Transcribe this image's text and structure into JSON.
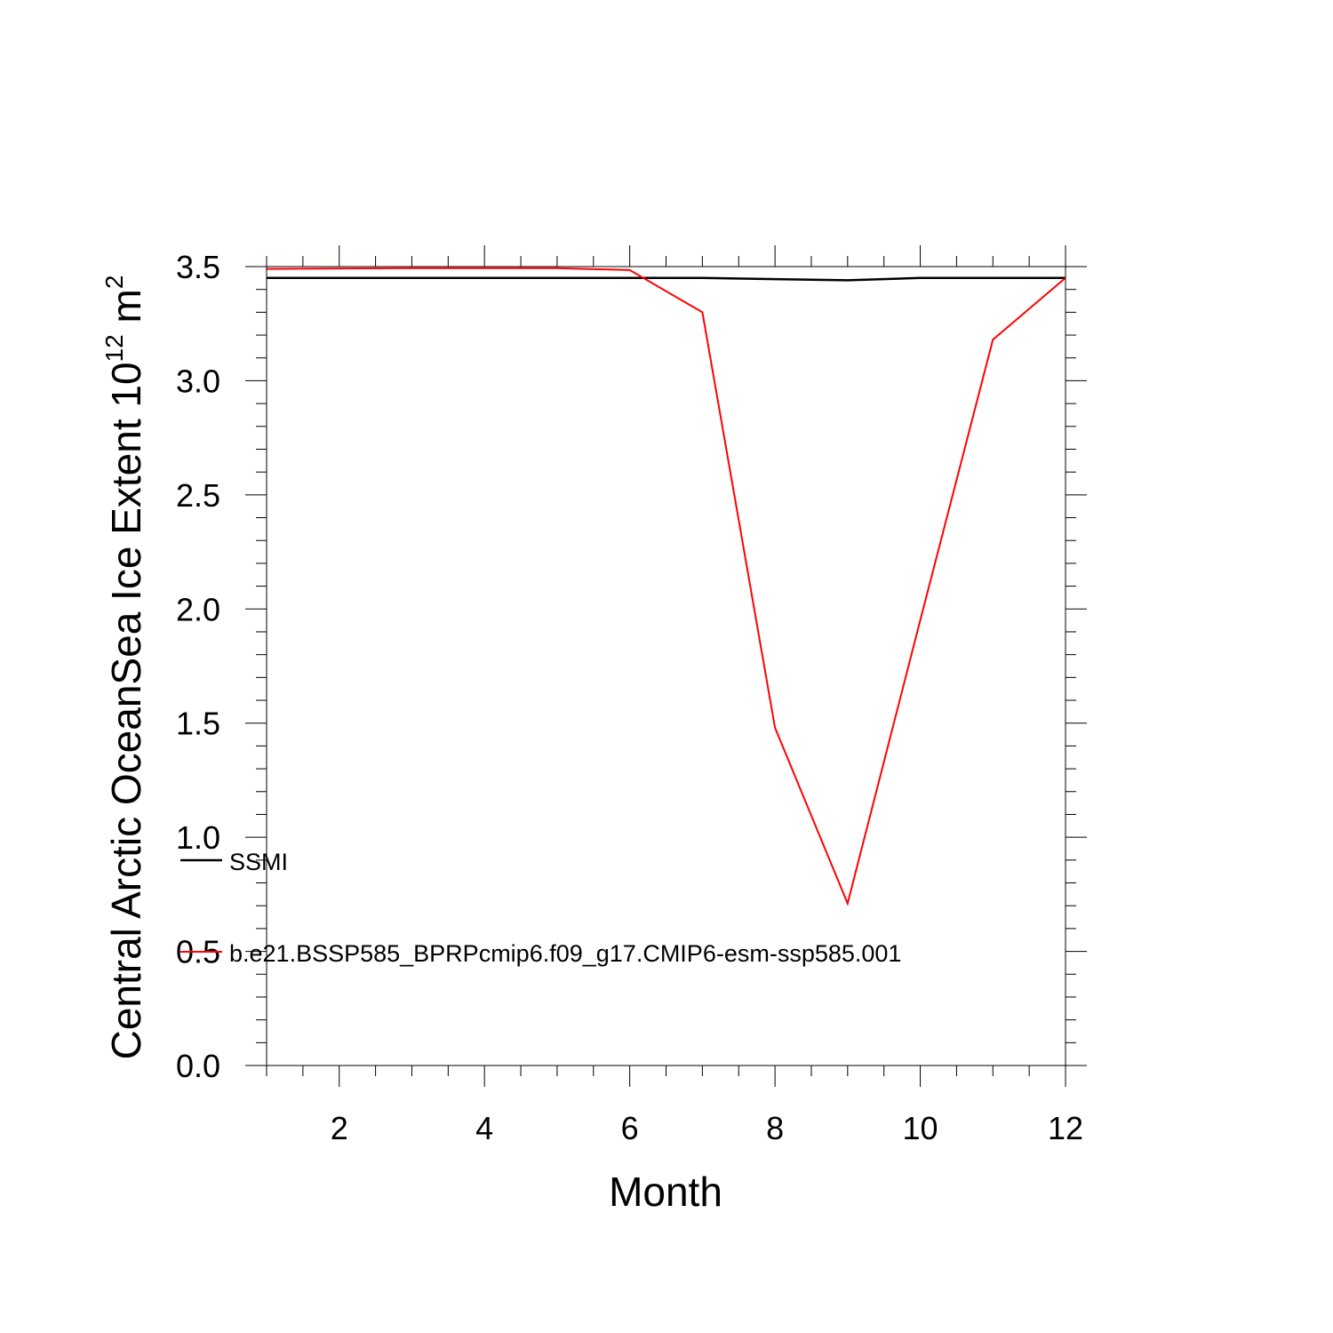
{
  "chart_data": {
    "type": "line",
    "xlabel": "Month",
    "ylabel": {
      "main": "Central Arctic OceanSea Ice Extent 10",
      "sup1": "12",
      "mid": " m",
      "sup2": "2"
    },
    "xlim": [
      1,
      12
    ],
    "ylim": [
      0,
      3.5
    ],
    "x_ticks": [
      2,
      4,
      6,
      8,
      10,
      12
    ],
    "y_ticks": [
      0.0,
      0.5,
      1.0,
      1.5,
      2.0,
      2.5,
      3.0,
      3.5
    ],
    "y_tick_labels": [
      "0.0",
      "0.5",
      "1.0",
      "1.5",
      "2.0",
      "2.5",
      "3.0",
      "3.5"
    ],
    "x": [
      1,
      2,
      3,
      4,
      5,
      6,
      7,
      8,
      9,
      10,
      11,
      12
    ],
    "grid": false,
    "legend_position": "left, inside plot",
    "series": [
      {
        "name": "SSMI",
        "color": "#000000",
        "values": [
          3.45,
          3.45,
          3.45,
          3.45,
          3.45,
          3.45,
          3.45,
          3.445,
          3.44,
          3.45,
          3.45,
          3.45
        ]
      },
      {
        "name": "b.e21.BSSP585_BPRPcmip6.f09_g17.CMIP6-esm-ssp585.001",
        "color": "#ff0000",
        "values": [
          3.49,
          3.492,
          3.493,
          3.493,
          3.493,
          3.485,
          3.3,
          1.48,
          0.71,
          1.95,
          3.18,
          3.45
        ]
      }
    ]
  }
}
